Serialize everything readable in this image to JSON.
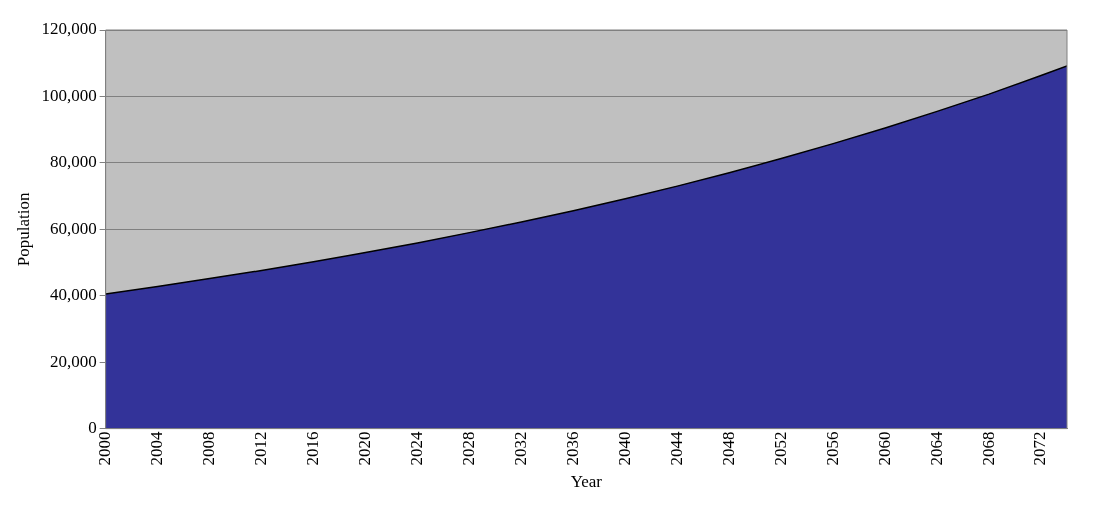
{
  "chart_data": {
    "type": "area",
    "xlabel": "Year",
    "ylabel": "Population",
    "x": [
      2000,
      2004,
      2008,
      2012,
      2016,
      2020,
      2024,
      2028,
      2032,
      2036,
      2040,
      2044,
      2048,
      2052,
      2056,
      2060,
      2064,
      2068,
      2072,
      2074
    ],
    "series": [
      {
        "color": "#333399",
        "values": [
          40500,
          42800,
          45200,
          47600,
          50200,
          53000,
          55900,
          59000,
          62200,
          65600,
          69200,
          73000,
          77000,
          81300,
          85800,
          90500,
          95500,
          100700,
          106300,
          109200
        ]
      }
    ],
    "xlim": [
      2000,
      2074
    ],
    "xticks": [
      2000,
      2004,
      2008,
      2012,
      2016,
      2020,
      2024,
      2028,
      2032,
      2036,
      2040,
      2044,
      2048,
      2052,
      2056,
      2060,
      2064,
      2068,
      2072
    ],
    "ylim": [
      0,
      120000
    ],
    "yticks": [
      {
        "value": 0,
        "label": "0"
      },
      {
        "value": 20000,
        "label": "20,000"
      },
      {
        "value": 40000,
        "label": "40,000"
      },
      {
        "value": 60000,
        "label": "60,000"
      },
      {
        "value": 80000,
        "label": "80,000"
      },
      {
        "value": 100000,
        "label": "100,000"
      },
      {
        "value": 120000,
        "label": "120,000"
      }
    ],
    "grid": "y",
    "legend": false
  }
}
